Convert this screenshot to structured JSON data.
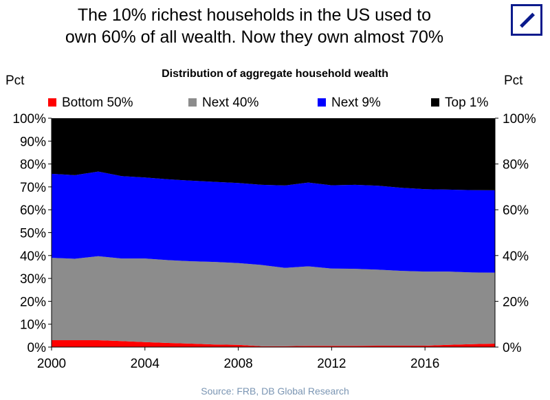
{
  "headline": {
    "line1": "The 10% richest households in the US used to",
    "line2": "own 60% of all wealth. Now they own almost 70%"
  },
  "logo": {
    "name": "deutsche-bank-logo"
  },
  "source": "Source: FRB, DB Global Research",
  "chart_data": {
    "type": "area",
    "stacked": true,
    "title": "Distribution of aggregate household wealth",
    "ylabel_left": "Pct",
    "ylabel_right": "Pct",
    "legend_position": "top",
    "x": [
      2000,
      2001,
      2002,
      2003,
      2004,
      2005,
      2006,
      2007,
      2008,
      2009,
      2010,
      2011,
      2012,
      2013,
      2014,
      2015,
      2016,
      2017,
      2018,
      2019
    ],
    "series": [
      {
        "name": "Bottom 50%",
        "color": "#ff0000",
        "values": [
          3.0,
          3.0,
          3.0,
          2.6,
          2.2,
          1.8,
          1.5,
          1.1,
          1.0,
          0.4,
          0.4,
          0.5,
          0.5,
          0.5,
          0.6,
          0.6,
          0.6,
          1.0,
          1.3,
          1.5
        ]
      },
      {
        "name": "Next 40%",
        "color": "#8c8c8c",
        "values": [
          36.0,
          35.6,
          36.7,
          36.1,
          36.5,
          36.2,
          36.0,
          36.1,
          35.7,
          35.5,
          34.2,
          34.8,
          33.8,
          33.7,
          33.2,
          32.7,
          32.4,
          32.0,
          31.3,
          31.0
        ]
      },
      {
        "name": "Next 9%",
        "color": "#0000ff",
        "values": [
          36.7,
          36.5,
          37.0,
          36.0,
          35.4,
          35.3,
          35.2,
          35.0,
          35.0,
          35.0,
          36.0,
          36.6,
          36.4,
          36.7,
          36.7,
          36.3,
          36.0,
          35.8,
          36.0,
          36.0
        ]
      },
      {
        "name": "Top 1%",
        "color": "#000000",
        "values": [
          24.3,
          24.9,
          23.3,
          25.3,
          25.9,
          26.7,
          27.3,
          27.8,
          28.3,
          29.1,
          29.4,
          28.1,
          29.3,
          29.1,
          29.5,
          30.4,
          31.0,
          31.2,
          31.4,
          31.5
        ]
      }
    ],
    "y_left": {
      "ticks": [
        "0%",
        "10%",
        "20%",
        "30%",
        "40%",
        "50%",
        "60%",
        "70%",
        "80%",
        "90%",
        "100%"
      ],
      "range": [
        0,
        100
      ]
    },
    "y_right": {
      "ticks": [
        "0%",
        "20%",
        "40%",
        "60%",
        "80%",
        "100%"
      ],
      "range": [
        0,
        100
      ]
    },
    "x_ticks": [
      "2000",
      "2004",
      "2008",
      "2012",
      "2016"
    ],
    "x_range": [
      2000,
      2019
    ],
    "grid": false
  }
}
